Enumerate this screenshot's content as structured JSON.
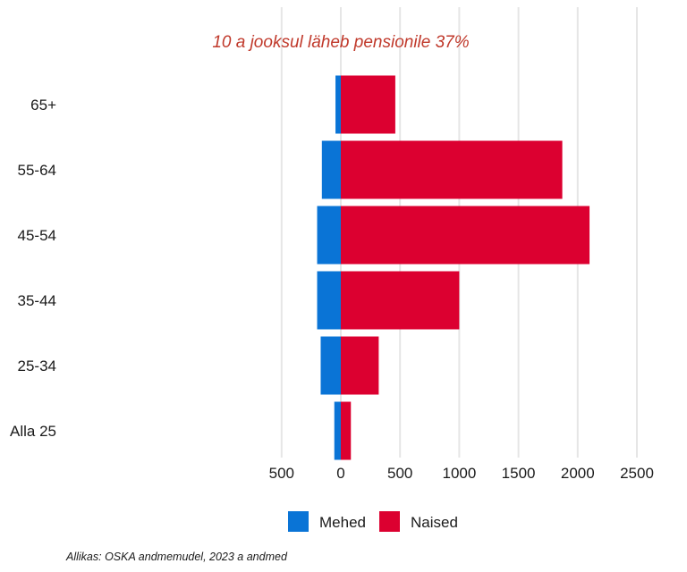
{
  "chart_data": {
    "type": "bar",
    "orientation": "horizontal",
    "subtitle": "10 a jooksul läheb pensionile 37%",
    "categories": [
      "Alla 25",
      "25-34",
      "35-44",
      "45-54",
      "55-64",
      "65+"
    ],
    "series": [
      {
        "name": "Mehed",
        "color": "#0a74d6",
        "values": [
          -55,
          -170,
          -200,
          -200,
          -160,
          -45
        ]
      },
      {
        "name": "Naised",
        "color": "#dc0030",
        "values": [
          85,
          320,
          1000,
          2100,
          1870,
          460
        ]
      }
    ],
    "xticks": [
      {
        "value": -500,
        "label": "500"
      },
      {
        "value": 0,
        "label": "0"
      },
      {
        "value": 500,
        "label": "500"
      },
      {
        "value": 1000,
        "label": "1000"
      },
      {
        "value": 1500,
        "label": "1500"
      },
      {
        "value": 2000,
        "label": "2000"
      },
      {
        "value": 2500,
        "label": "2500"
      }
    ],
    "xlim": [
      -500,
      2500
    ],
    "grid": true,
    "legend_position": "bottom",
    "source": "Allikas: OSKA andmemudel, 2023 a andmed"
  }
}
